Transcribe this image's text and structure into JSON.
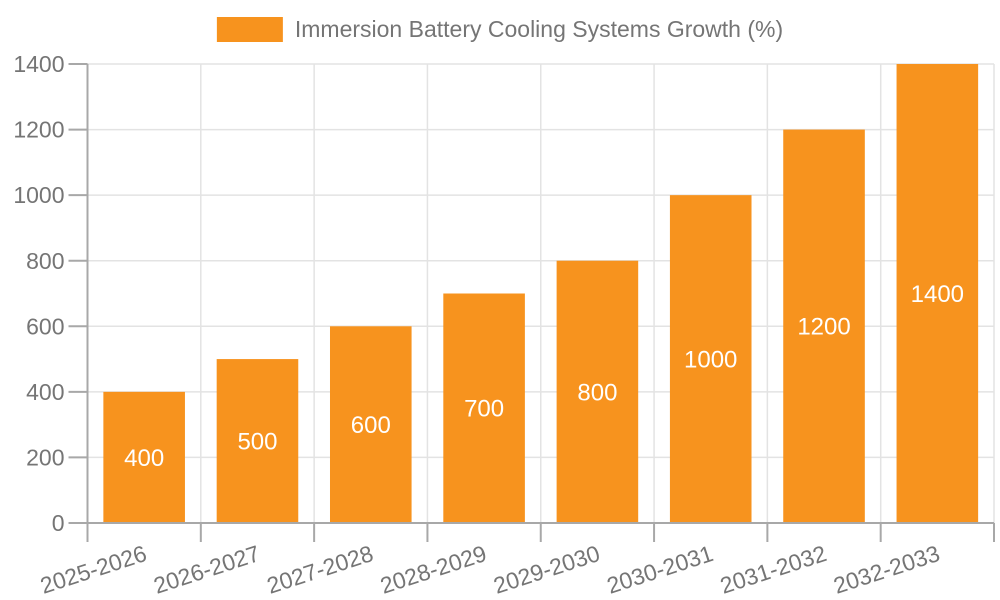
{
  "legend": {
    "label": "Immersion Battery Cooling Systems Growth (%)"
  },
  "colors": {
    "background": "#FFFFFF",
    "bar": "#F7931E",
    "bar_label": "#FFFFFF",
    "tick_label": "#757575",
    "legend_text": "#757575",
    "axis": "#A8A8A8",
    "gridline": "#E3E3E3"
  },
  "chart_data": {
    "type": "bar",
    "title": "",
    "legend_label": "Immersion Battery Cooling Systems Growth (%)",
    "legend_position": "top",
    "categories": [
      "2025-2026",
      "2026-2027",
      "2027-2028",
      "2028-2029",
      "2029-2030",
      "2030-2031",
      "2031-2032",
      "2032-2033"
    ],
    "values": [
      400,
      500,
      600,
      700,
      800,
      1000,
      1200,
      1400
    ],
    "bar_labels": [
      "400",
      "500",
      "600",
      "700",
      "800",
      "1000",
      "1200",
      "1400"
    ],
    "bar_label_placement": "center-inside",
    "xlabel": "",
    "ylabel": "",
    "ylim": [
      0,
      1400
    ],
    "yticks": [
      0,
      200,
      400,
      600,
      800,
      1000,
      1200,
      1400
    ],
    "grid": true,
    "x_tick_rotation_deg": -18
  }
}
